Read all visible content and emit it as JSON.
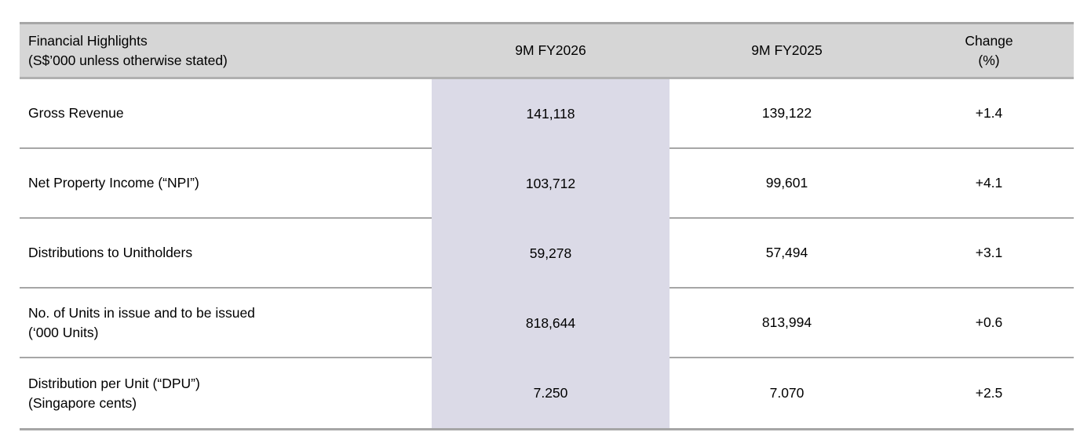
{
  "table": {
    "header": {
      "col0_line1": "Financial Highlights",
      "col0_line2": "(S$’000 unless otherwise stated)",
      "col1": "9M FY2026",
      "col2": "9M FY2025",
      "col3_line1": "Change",
      "col3_line2": "(%)"
    },
    "rows": [
      {
        "label_line1": "Gross Revenue",
        "label_line2": "",
        "fy2026": "141,118",
        "fy2025": "139,122",
        "change": "+1.4"
      },
      {
        "label_line1": "Net Property Income (“NPI”)",
        "label_line2": "",
        "fy2026": "103,712",
        "fy2025": "99,601",
        "change": "+4.1"
      },
      {
        "label_line1": "Distributions to Unitholders",
        "label_line2": "",
        "fy2026": "59,278",
        "fy2025": "57,494",
        "change": "+3.1"
      },
      {
        "label_line1": "No. of Units in issue and to be issued",
        "label_line2": "(‘000 Units)",
        "fy2026": "818,644",
        "fy2025": "813,994",
        "change": "+0.6"
      },
      {
        "label_line1": "Distribution per Unit (“DPU”)",
        "label_line2": "(Singapore cents)",
        "fy2026": "7.250",
        "fy2025": "7.070",
        "change": "+2.5"
      }
    ],
    "colors": {
      "header_bg": "#d6d6d6",
      "highlight_column_bg": "#dbdae7",
      "divider": "#a6a6a6",
      "text": "#000000",
      "page_bg": "#ffffff"
    }
  }
}
